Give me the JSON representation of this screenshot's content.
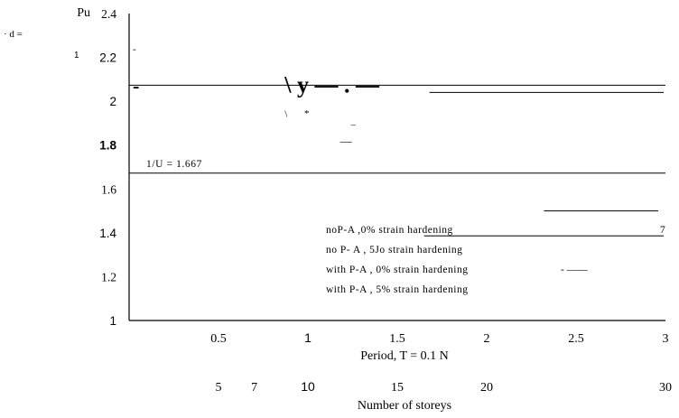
{
  "chart_data": {
    "type": "line",
    "ylabel": "Pu",
    "corner_text": [
      {
        "text": "· d =",
        "font": "serif"
      },
      {
        "text": "1",
        "font": "sans"
      }
    ],
    "x_axis": {
      "label": "Period, T = 0.1 N",
      "range": [
        0,
        3
      ],
      "ticks": [
        {
          "value": 0.5,
          "label": "0.5",
          "font": "serif"
        },
        {
          "value": 1,
          "label": "1",
          "font": "sans"
        },
        {
          "value": 1.5,
          "label": "1.5",
          "font": "serif"
        },
        {
          "value": 2,
          "label": "2",
          "font": "serif"
        },
        {
          "value": 2.5,
          "label": "2.5",
          "font": "serif"
        },
        {
          "value": 3,
          "label": "3",
          "font": "serif"
        }
      ]
    },
    "secondary_x_axis": {
      "label": "Number of storeys",
      "ticks": [
        {
          "value": 0.5,
          "label": "5",
          "font": "serif"
        },
        {
          "value": 0.7,
          "label": "7",
          "font": "serif"
        },
        {
          "value": 1,
          "label": "10",
          "font": "sans"
        },
        {
          "value": 1.5,
          "label": "15",
          "font": "serif"
        },
        {
          "value": 2,
          "label": "20",
          "font": "serif"
        },
        {
          "value": 3,
          "label": "30",
          "font": "serif"
        }
      ]
    },
    "y_axis": {
      "range": [
        1,
        2.4
      ],
      "ticks": [
        {
          "value": 1,
          "label": "1",
          "font": "sans",
          "bold": false
        },
        {
          "value": 1.2,
          "label": "1.2",
          "font": "serif",
          "bold": false
        },
        {
          "value": 1.4,
          "label": "1.4",
          "font": "sans",
          "bold": false
        },
        {
          "value": 1.6,
          "label": "1.6",
          "font": "serif",
          "bold": false
        },
        {
          "value": 1.8,
          "label": "1.8",
          "font": "sans",
          "bold": true
        },
        {
          "value": 2,
          "label": "2",
          "font": "sans",
          "bold": false
        },
        {
          "value": 2.2,
          "label": "2.2",
          "font": "sans",
          "bold": false
        },
        {
          "value": 2.4,
          "label": "2.4",
          "font": "serif",
          "bold": false
        }
      ]
    },
    "reference_lines": [
      {
        "name": "upper-reference-line",
        "y": 2.073
      },
      {
        "name": "lower-reference-line",
        "y": 1.672
      }
    ],
    "reference_annotation": {
      "text": "1/U = 1.667"
    },
    "series": [
      {
        "name": "noP-A ,0% strain hardening",
        "segments": [
          [
            [
              1.68,
              2.04
            ],
            [
              2.99,
              2.04
            ]
          ]
        ]
      },
      {
        "name": "no P- A , 5Jo strain hardening",
        "segments": [
          [
            [
              2.32,
              1.5
            ],
            [
              2.96,
              1.5
            ]
          ]
        ]
      },
      {
        "name": "with P-A , 0% strain hardening",
        "segments": [
          [
            [
              1.65,
              1.386
            ],
            [
              2.99,
              1.386
            ]
          ]
        ]
      },
      {
        "name": "with P-A , 5% strain hardening",
        "segments": []
      }
    ],
    "legend": {
      "placement": "center-right",
      "entries": [
        {
          "text": "noP-A ,0% strain hardening",
          "mark": "7"
        },
        {
          "text": "no P- A , 5Jo strain hardening",
          "mark": ""
        },
        {
          "text": "with P-A , 0% strain hardening",
          "mark": "- ——"
        },
        {
          "text": "with P-A , 5% strain hardening",
          "mark": ""
        }
      ]
    },
    "scan_fragments": [
      {
        "text": "-",
        "x": 0.02,
        "y": 2.04,
        "size": 22
      },
      {
        "text": "\\ y — . —",
        "x": 0.87,
        "y": 2.04,
        "size": 26
      },
      {
        "text": "\\",
        "x": 0.87,
        "y": 1.928,
        "size": 11
      },
      {
        "text": "*",
        "x": 0.98,
        "y": 1.93,
        "size": 11
      },
      {
        "text": "_",
        "x": 1.24,
        "y": 1.895,
        "size": 11
      },
      {
        "text": "—",
        "x": 1.18,
        "y": 1.8,
        "size": 13
      },
      {
        "text": "-",
        "x": 0.02,
        "y": 2.225,
        "size": 11
      }
    ],
    "grid": false
  }
}
